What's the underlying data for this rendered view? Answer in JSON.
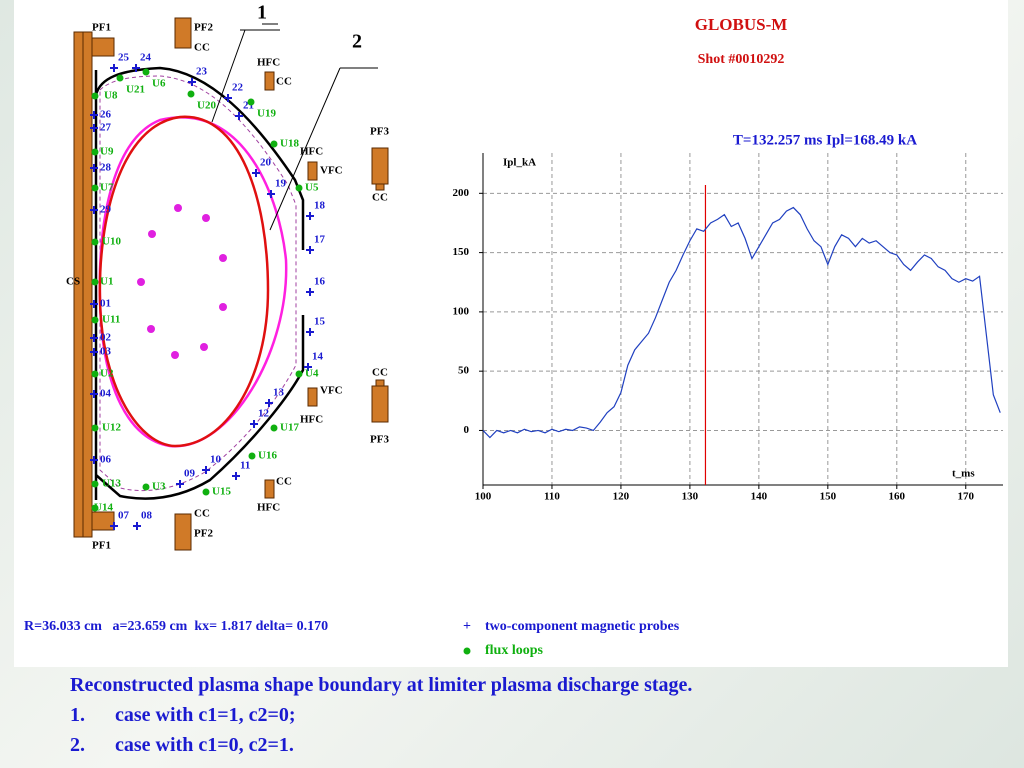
{
  "header": {
    "title": "GLOBUS-M",
    "shot": "Shot #0010292"
  },
  "diagram": {
    "annotations": [
      "1",
      "2"
    ],
    "coils": [
      "PF1",
      "PF2",
      "CC",
      "HFC",
      "CC",
      "PF3",
      "HFC",
      "VFC",
      "CC",
      "CS",
      "CC",
      "VFC",
      "HFC",
      "PF3",
      "CC",
      "HFC",
      "CC",
      "PF2",
      "PF1"
    ],
    "probes": [
      "25",
      "24",
      "23",
      "22",
      "21",
      "20",
      "19",
      "18",
      "17",
      "16",
      "15",
      "14",
      "13",
      "12",
      "11",
      "10",
      "09",
      "08",
      "07",
      "06",
      "04",
      "03",
      "02",
      "01",
      "29",
      "28",
      "27",
      "26"
    ],
    "flux_loops": [
      "U8",
      "U21",
      "U6",
      "U20",
      "U19",
      "U18",
      "U5",
      "U9",
      "U7",
      "U10",
      "U1",
      "U11",
      "U2",
      "U4",
      "U17",
      "U12",
      "U16",
      "U15",
      "U3",
      "U13",
      "U14"
    ],
    "parameters": "R=36.033 cm   a=23.659 cm  kx= 1.817 delta= 0.170",
    "legend": [
      {
        "symbol": "+",
        "label": "two-component magnetic probes"
      },
      {
        "label": "flux loops"
      }
    ]
  },
  "chart_data": {
    "type": "line",
    "title": "T=132.257 ms Ipl=168.49 kA",
    "y_label": "Ipl_kA",
    "x_label": "t_ms",
    "xlim": [
      100,
      175.4
    ],
    "ylim": [
      -46,
      234
    ],
    "xticks": [
      100,
      110,
      120,
      130,
      140,
      150,
      160,
      170
    ],
    "yticks": [
      0,
      50,
      100,
      150,
      200
    ],
    "grid": true,
    "cursor_x": 132.257,
    "cursor_color": "#e00000",
    "series": [
      {
        "name": "Ipl",
        "color": "#2040c0",
        "x": [
          100,
          101,
          102,
          103,
          104,
          105,
          106,
          107,
          108,
          109,
          110,
          111,
          112,
          113,
          114,
          115,
          116,
          117,
          118,
          119,
          120,
          121,
          122,
          123,
          124,
          125,
          126,
          127,
          128,
          129,
          130,
          131,
          132,
          133,
          134,
          135,
          136,
          137,
          138,
          139,
          140,
          141,
          142,
          143,
          144,
          145,
          146,
          147,
          148,
          149,
          150,
          151,
          152,
          153,
          154,
          155,
          156,
          157,
          158,
          159,
          160,
          161,
          162,
          163,
          164,
          165,
          166,
          167,
          168,
          169,
          170,
          171,
          172,
          173,
          174,
          175
        ],
        "values": [
          0,
          -6,
          0,
          -2,
          0,
          -2,
          1,
          -1,
          0,
          -2,
          1,
          -1,
          1,
          0,
          3,
          2,
          0,
          7,
          15,
          20,
          32,
          55,
          68,
          75,
          82,
          95,
          110,
          125,
          135,
          148,
          160,
          170,
          168,
          175,
          178,
          182,
          172,
          175,
          162,
          145,
          155,
          165,
          175,
          178,
          185,
          188,
          182,
          170,
          160,
          155,
          140,
          155,
          165,
          162,
          155,
          162,
          158,
          160,
          155,
          150,
          148,
          140,
          135,
          142,
          148,
          145,
          138,
          135,
          128,
          125,
          128,
          126,
          130,
          80,
          30,
          15
        ]
      }
    ]
  },
  "caption": {
    "title": "Reconstructed plasma shape boundary at limiter plasma discharge stage.",
    "items": [
      {
        "number": "1.",
        "text": "case with c1=1, c2=0;"
      },
      {
        "number": "2.",
        "text": "case with c1=0, c2=1."
      }
    ]
  }
}
